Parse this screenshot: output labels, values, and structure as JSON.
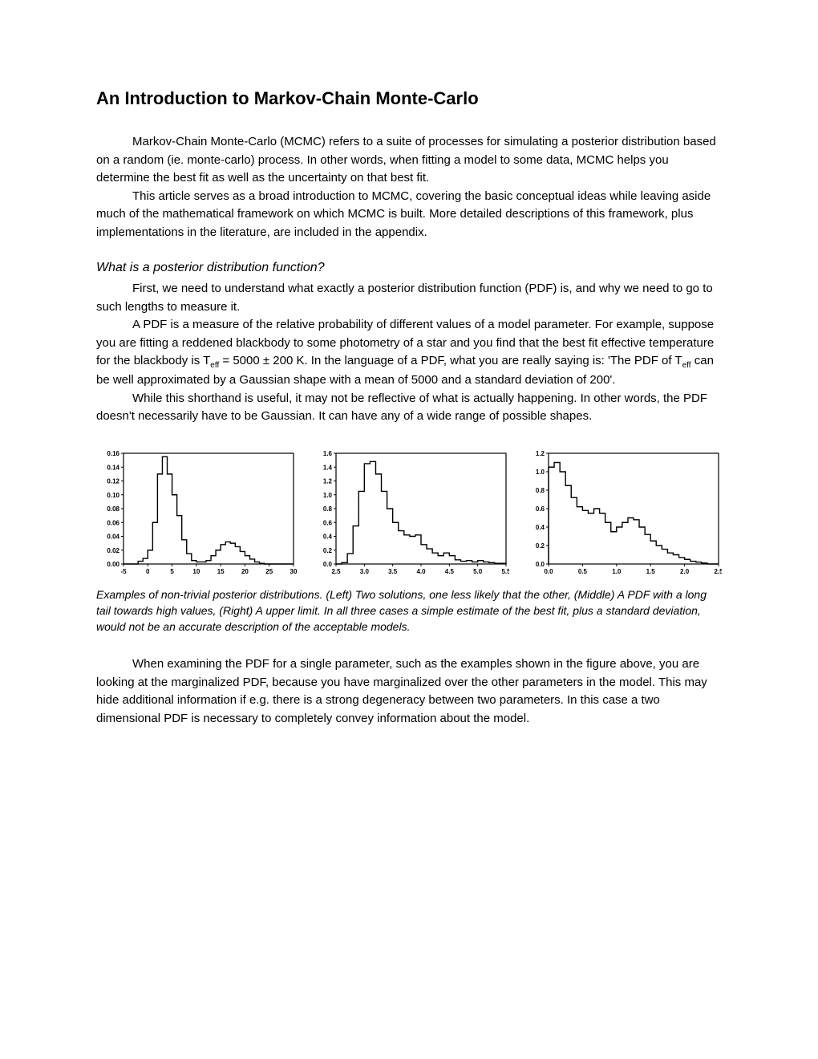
{
  "title": "An Introduction to Markov-Chain Monte-Carlo",
  "p1": "Markov-Chain Monte-Carlo (MCMC) refers to a suite of processes for simulating a posterior distribution based on a random (ie. monte-carlo) process. In other words, when fitting a model to some data, MCMC helps you determine the best fit as well as the uncertainty on that best fit.",
  "p2": "This article serves as a broad introduction to MCMC, covering the basic conceptual ideas while leaving aside much of the mathematical framework on which MCMC is built. More detailed descriptions of this framework, plus implementations in the literature, are included in the appendix.",
  "subtitle": "What is a posterior distribution function?",
  "p3": "First, we need to understand what exactly a posterior distribution function (PDF) is, and why we need to go to such lengths to measure it.",
  "p4a": "A PDF is a measure of the relative probability of different values of a model parameter. For example, suppose you are fitting a reddened blackbody to some photometry of a star and you find that the best fit effective temperature for the blackbody is T",
  "p4b": " = 5000 ± 200 K. In the language of a PDF, what you are really saying is: 'The PDF of T",
  "p4c": " can be well approximated by a Gaussian shape with a mean of 5000 and a standard deviation of 200'.",
  "p5": "While this shorthand is useful, it may not be reflective of what is actually happening. In other words, the PDF doesn't necessarily have to be Gaussian. It can have any of a wide range of possible shapes.",
  "sub_eff": "eff",
  "caption": "Examples of non-trivial posterior distributions. (Left) Two solutions, one less likely that the other, (Middle) A PDF with a long tail towards high values, (Right) A upper limit. In all three cases a simple estimate of the best fit, plus a standard deviation, would not be an accurate description of the acceptable models.",
  "p6": "When examining the PDF for a single parameter, such as the examples shown in the figure above, you are looking at the marginalized PDF, because you have marginalized over the other parameters in the model. This may hide additional information if e.g. there is a strong degeneracy between two parameters. In this case a two dimensional PDF is necessary to completely convey information about the model.",
  "chart1": {
    "type": "step-histogram",
    "xlim": [
      -5,
      30
    ],
    "ylim": [
      0,
      0.16
    ],
    "xticks": [
      -5,
      0,
      5,
      10,
      15,
      20,
      25,
      30
    ],
    "yticks": [
      0.0,
      0.02,
      0.04,
      0.06,
      0.08,
      0.1,
      0.12,
      0.14,
      0.16
    ],
    "ytick_labels": [
      "0.00",
      "0.02",
      "0.04",
      "0.06",
      "0.08",
      "0.10",
      "0.12",
      "0.14",
      "0.16"
    ],
    "line_color": "#000000",
    "line_width": 1.4,
    "tick_fontsize": 8,
    "data_x": [
      -5,
      -4,
      -3,
      -2,
      -1,
      0,
      1,
      2,
      3,
      4,
      5,
      6,
      7,
      8,
      9,
      10,
      11,
      12,
      13,
      14,
      15,
      16,
      17,
      18,
      19,
      20,
      21,
      22,
      23,
      24,
      25,
      26,
      27,
      28,
      29,
      30
    ],
    "data_y": [
      0,
      0,
      0,
      0.004,
      0.008,
      0.02,
      0.06,
      0.13,
      0.155,
      0.13,
      0.1,
      0.07,
      0.035,
      0.015,
      0.005,
      0.003,
      0.003,
      0.005,
      0.012,
      0.02,
      0.028,
      0.032,
      0.03,
      0.025,
      0.018,
      0.012,
      0.007,
      0.003,
      0.001,
      0,
      0,
      0,
      0,
      0,
      0,
      0
    ]
  },
  "chart2": {
    "type": "step-histogram",
    "xlim": [
      2.5,
      5.5
    ],
    "ylim": [
      0,
      1.6
    ],
    "xticks": [
      2.5,
      3.0,
      3.5,
      4.0,
      4.5,
      5.0,
      5.5
    ],
    "yticks": [
      0.0,
      0.2,
      0.4,
      0.6,
      0.8,
      1.0,
      1.2,
      1.4,
      1.6
    ],
    "ytick_labels": [
      "0.0",
      "0.2",
      "0.4",
      "0.6",
      "0.8",
      "1.0",
      "1.2",
      "1.4",
      "1.6"
    ],
    "line_color": "#000000",
    "line_width": 1.4,
    "tick_fontsize": 8,
    "data_x": [
      2.5,
      2.6,
      2.7,
      2.8,
      2.9,
      3.0,
      3.1,
      3.2,
      3.3,
      3.4,
      3.5,
      3.6,
      3.7,
      3.8,
      3.9,
      4.0,
      4.1,
      4.2,
      4.3,
      4.4,
      4.5,
      4.6,
      4.7,
      4.8,
      4.9,
      5.0,
      5.1,
      5.2,
      5.3,
      5.4,
      5.5
    ],
    "data_y": [
      0,
      0.02,
      0.15,
      0.55,
      1.05,
      1.45,
      1.48,
      1.3,
      1.05,
      0.8,
      0.6,
      0.48,
      0.42,
      0.4,
      0.42,
      0.28,
      0.22,
      0.16,
      0.12,
      0.16,
      0.12,
      0.06,
      0.04,
      0.05,
      0.03,
      0.05,
      0.03,
      0.02,
      0.01,
      0.01,
      0
    ]
  },
  "chart3": {
    "type": "step-histogram",
    "xlim": [
      0.0,
      2.5
    ],
    "ylim": [
      0,
      1.2
    ],
    "xticks": [
      0.0,
      0.5,
      1.0,
      1.5,
      2.0,
      2.5
    ],
    "yticks": [
      0.0,
      0.2,
      0.4,
      0.6,
      0.8,
      1.0,
      1.2
    ],
    "ytick_labels": [
      "0.0",
      "0.2",
      "0.4",
      "0.6",
      "0.8",
      "1.0",
      "1.2"
    ],
    "line_color": "#000000",
    "line_width": 1.4,
    "tick_fontsize": 8,
    "data_x": [
      0.0,
      0.083,
      0.167,
      0.25,
      0.333,
      0.417,
      0.5,
      0.583,
      0.667,
      0.75,
      0.833,
      0.917,
      1.0,
      1.083,
      1.167,
      1.25,
      1.333,
      1.417,
      1.5,
      1.583,
      1.667,
      1.75,
      1.833,
      1.917,
      2.0,
      2.083,
      2.167,
      2.25,
      2.333,
      2.417,
      2.5
    ],
    "data_y": [
      1.05,
      1.1,
      1.0,
      0.85,
      0.72,
      0.62,
      0.58,
      0.55,
      0.6,
      0.55,
      0.45,
      0.35,
      0.4,
      0.45,
      0.5,
      0.48,
      0.4,
      0.32,
      0.25,
      0.2,
      0.16,
      0.12,
      0.1,
      0.07,
      0.05,
      0.03,
      0.02,
      0.01,
      0,
      0,
      0
    ]
  }
}
